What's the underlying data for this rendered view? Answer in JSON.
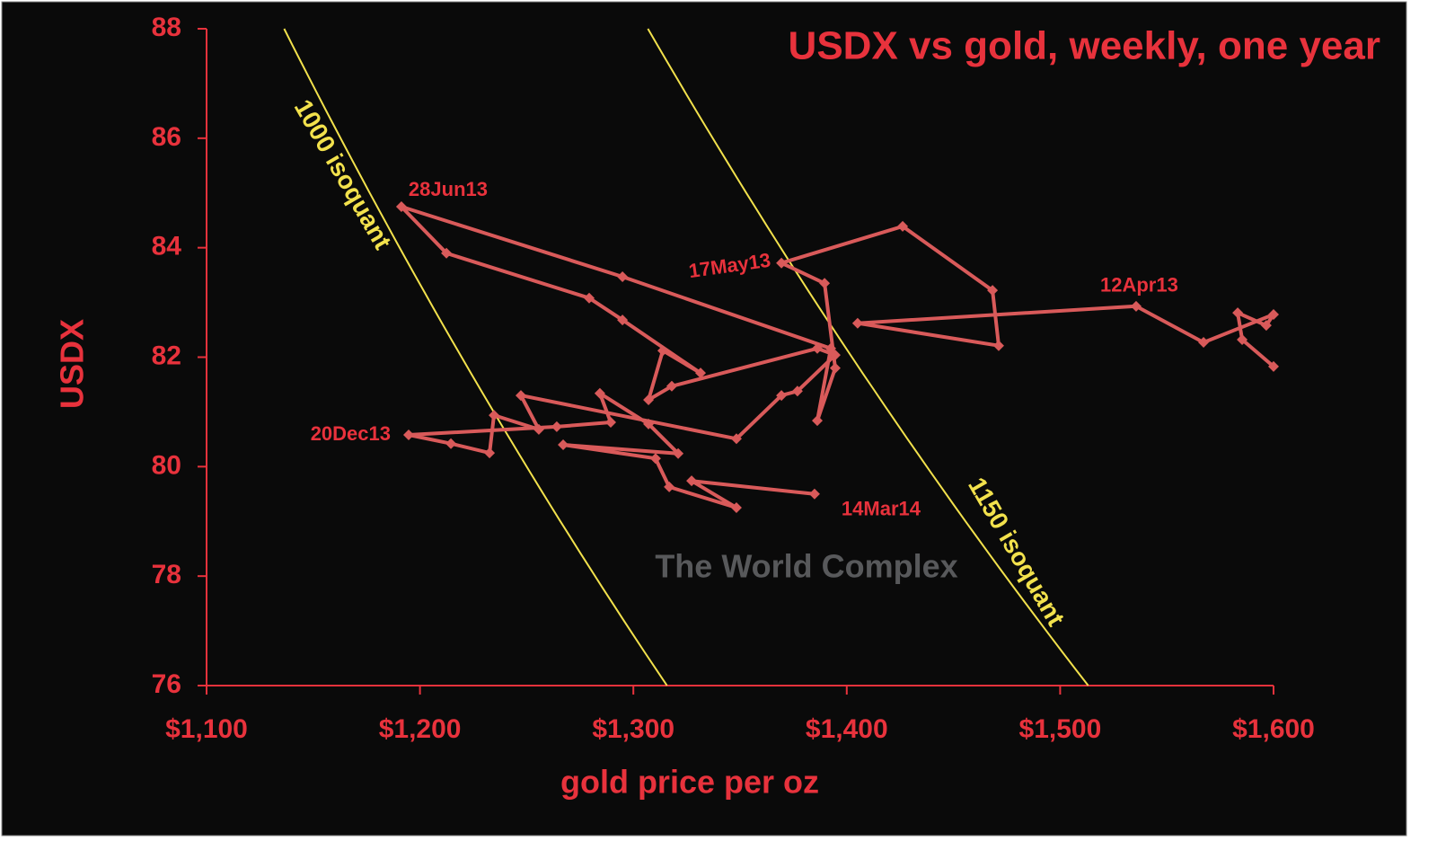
{
  "chart_data": {
    "type": "scatter-line",
    "title": "USDX vs gold, weekly, one year",
    "x_label": "gold price per oz",
    "y_label": "USDX",
    "watermark": "The World Complex",
    "color": "#d95a5a",
    "axis_color": "#e8323c",
    "x": [
      1600.0,
      1585.3,
      1583.2,
      1596.6,
      1600.0,
      1567.2,
      1535.6,
      1405.1,
      1471.2,
      1468.3,
      1426.2,
      1369.4,
      1389.6,
      1394.6,
      1386.2,
      1392.5,
      1294.9,
      1191.3,
      1212.4,
      1279.3,
      1294.9,
      1331.5,
      1313.8,
      1307.1,
      1318.0,
      1386.2,
      1394.6,
      1376.9,
      1369.4,
      1348.3,
      1247.3,
      1255.7,
      1234.7,
      1232.6,
      1214.5,
      1194.7,
      1264.1,
      1289.4,
      1284.3,
      1307.1,
      1321.0,
      1267.1,
      1310.4,
      1316.8,
      1348.3,
      1327.3,
      1384.9
    ],
    "values": [
      81.83,
      82.32,
      82.81,
      82.58,
      82.78,
      82.27,
      82.93,
      82.62,
      82.21,
      83.22,
      84.39,
      83.72,
      83.35,
      81.8,
      80.84,
      82.16,
      83.47,
      84.75,
      83.9,
      83.08,
      82.68,
      81.71,
      82.12,
      81.22,
      81.47,
      82.16,
      82.04,
      81.38,
      81.3,
      80.51,
      81.3,
      80.68,
      80.94,
      80.25,
      80.42,
      80.58,
      80.73,
      80.81,
      81.34,
      80.78,
      80.24,
      80.4,
      80.15,
      79.63,
      79.25,
      79.74,
      79.5
    ],
    "point_labels": [
      null,
      null,
      null,
      null,
      null,
      null,
      "12Apr13",
      null,
      null,
      null,
      null,
      "17May13",
      null,
      null,
      null,
      null,
      null,
      "28Jun13",
      null,
      null,
      null,
      null,
      null,
      null,
      null,
      null,
      null,
      null,
      null,
      null,
      null,
      null,
      null,
      null,
      null,
      "20Dec13",
      null,
      null,
      null,
      null,
      null,
      null,
      null,
      null,
      null,
      null,
      "14Mar14"
    ],
    "isoquants": [
      {
        "label": "1000 isoquant",
        "value": 1000
      },
      {
        "label": "1150 isoquant",
        "value": 1150
      }
    ],
    "isoquant_color": "#f2e14c",
    "xlim": [
      1100,
      1600
    ],
    "xticks": [
      {
        "value": 1100,
        "label": "$1,100"
      },
      {
        "value": 1200,
        "label": "$1,200"
      },
      {
        "value": 1300,
        "label": "$1,300"
      },
      {
        "value": 1400,
        "label": "$1,400"
      },
      {
        "value": 1500,
        "label": "$1,500"
      },
      {
        "value": 1600,
        "label": "$1,600"
      }
    ],
    "ylim": [
      76,
      88
    ],
    "yticks": [
      76,
      78,
      80,
      82,
      84,
      86,
      88
    ],
    "grid": false
  }
}
